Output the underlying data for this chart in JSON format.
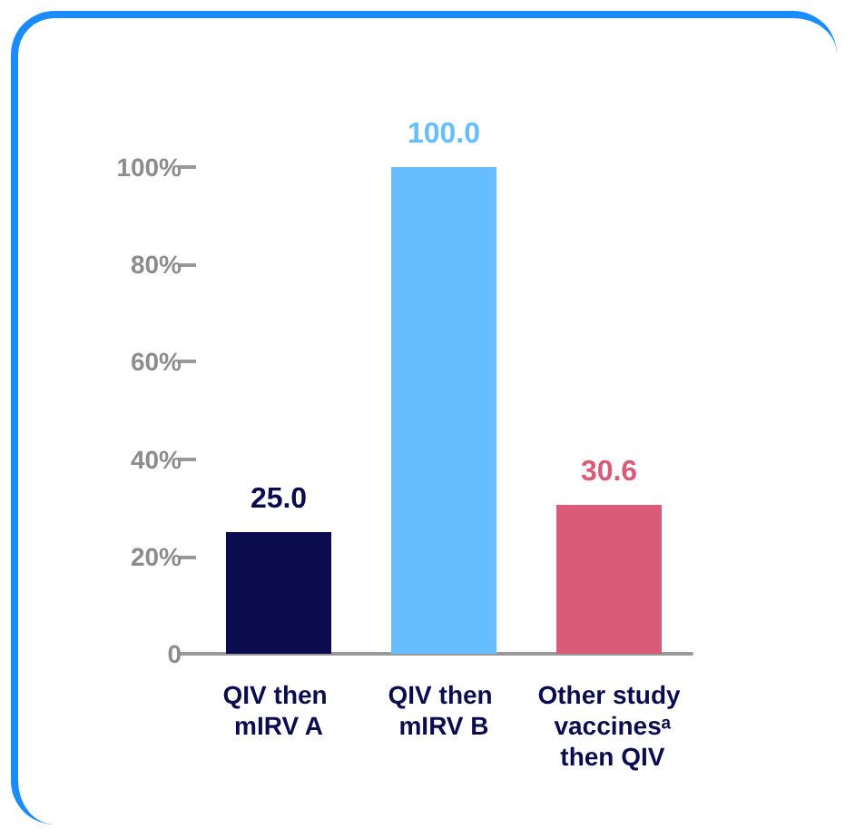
{
  "chart_data": {
    "type": "bar",
    "categories": [
      "QIV then mIRV A",
      "QIV then mIRV B",
      "Other study vaccinesᵃ then QIV"
    ],
    "values": [
      25.0,
      100.0,
      30.6
    ],
    "colors": [
      "#0b0b4f",
      "#66bdff",
      "#d95b78"
    ],
    "value_labels": [
      "25.0",
      "100.0",
      "30.6"
    ],
    "ylim": [
      0,
      100
    ],
    "yticks": [
      0,
      {
        "value": 20,
        "label": "20%"
      },
      {
        "value": 40,
        "label": "40%"
      },
      {
        "value": 60,
        "label": "60%"
      },
      {
        "value": 80,
        "label": "80%"
      },
      {
        "value": 100,
        "label": "100%"
      }
    ],
    "grid": false
  }
}
